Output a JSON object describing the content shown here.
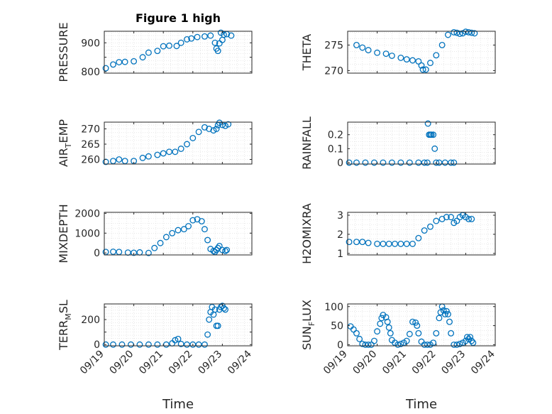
{
  "chart_data": {
    "title": "Figure 1 high",
    "time_axis": {
      "label": "Time",
      "tick_labels": [
        "09/19",
        "09/20",
        "09/21",
        "09/22",
        "09/23",
        "09/24"
      ],
      "range": [
        "09/19",
        "09/24"
      ]
    },
    "marker": {
      "shape": "open-circle",
      "color": "#0072bd"
    },
    "grid": "dotted major and minor",
    "panels": [
      {
        "type": "scatter",
        "ylabel_parts": [
          "PRESSURE"
        ],
        "ylim": [
          795,
          940
        ],
        "yticks": [
          800,
          850,
          900
        ],
        "ytick_labels": [
          "800",
          "",
          "900"
        ],
        "x": [
          0.05,
          0.3,
          0.5,
          0.7,
          1.0,
          1.3,
          1.5,
          1.8,
          2.0,
          2.2,
          2.45,
          2.6,
          2.8,
          2.95,
          3.15,
          3.4,
          3.6,
          3.75,
          3.8,
          3.85,
          3.9,
          3.95,
          4.0,
          4.05,
          4.15,
          4.3
        ],
        "y": [
          812,
          825,
          833,
          834,
          836,
          850,
          866,
          872,
          888,
          890,
          889,
          900,
          912,
          915,
          920,
          922,
          925,
          900,
          880,
          872,
          898,
          935,
          910,
          928,
          930,
          925
        ]
      },
      {
        "type": "scatter",
        "ylabel_parts": [
          "THETA"
        ],
        "ylim": [
          269.5,
          277.7
        ],
        "yticks": [
          270,
          275
        ],
        "ytick_labels": [
          "270",
          "275"
        ],
        "x": [
          0.3,
          0.5,
          0.7,
          1.0,
          1.3,
          1.5,
          1.8,
          2.0,
          2.2,
          2.4,
          2.5,
          2.55,
          2.65,
          2.8,
          3.0,
          3.2,
          3.4,
          3.6,
          3.7,
          3.8,
          3.9,
          4.0,
          4.1,
          4.2,
          4.3
        ],
        "y": [
          275,
          274.5,
          274,
          273.5,
          273.3,
          272.9,
          272.5,
          272.2,
          272,
          271.8,
          271,
          270.2,
          270.2,
          271.5,
          273,
          275,
          277,
          277.5,
          277.4,
          277.2,
          277.3,
          277.6,
          277.5,
          277.4,
          277.3
        ]
      },
      {
        "type": "scatter",
        "ylabel_parts": [
          "AIR",
          "T",
          "EMP"
        ],
        "ylim": [
          258.5,
          272.2
        ],
        "yticks": [
          260,
          265,
          270
        ],
        "ytick_labels": [
          "260",
          "265",
          "270"
        ],
        "x": [
          0.05,
          0.3,
          0.5,
          0.7,
          1.0,
          1.3,
          1.5,
          1.8,
          2.0,
          2.2,
          2.4,
          2.6,
          2.8,
          3.0,
          3.2,
          3.4,
          3.55,
          3.7,
          3.8,
          3.85,
          3.9,
          4.0,
          4.1,
          4.2
        ],
        "y": [
          259.2,
          259.5,
          260,
          259.5,
          259.5,
          260.5,
          261,
          261.5,
          262,
          262.5,
          262.5,
          263.5,
          265,
          267,
          269,
          270.5,
          270,
          269.5,
          270,
          271.2,
          272,
          271.3,
          271,
          271.5
        ]
      },
      {
        "type": "scatter",
        "ylabel_parts": [
          "RAINFALL"
        ],
        "ylim": [
          -0.01,
          0.29
        ],
        "yticks": [
          0,
          0.1,
          0.2
        ],
        "ytick_labels": [
          "0",
          "0.1",
          "0.2"
        ],
        "x": [
          0.05,
          0.3,
          0.6,
          0.9,
          1.2,
          1.5,
          1.8,
          2.1,
          2.4,
          2.6,
          2.7,
          2.72,
          2.76,
          2.8,
          2.84,
          2.9,
          2.95,
          3.0,
          3.1,
          3.3,
          3.5,
          3.6
        ],
        "y": [
          0,
          0,
          0,
          0,
          0,
          0,
          0,
          0,
          0,
          0,
          0,
          0.28,
          0.2,
          0.2,
          0.2,
          0.2,
          0.1,
          0,
          0,
          0,
          0,
          0
        ]
      },
      {
        "type": "scatter",
        "ylabel_parts": [
          "MIXDEPTH"
        ],
        "ylim": [
          -100,
          2050
        ],
        "yticks": [
          0,
          1000,
          2000
        ],
        "ytick_labels": [
          "0",
          "1000",
          "2000"
        ],
        "x": [
          0.05,
          0.3,
          0.5,
          0.8,
          1.0,
          1.2,
          1.5,
          1.7,
          1.9,
          2.1,
          2.3,
          2.5,
          2.7,
          2.85,
          3.0,
          3.15,
          3.3,
          3.4,
          3.5,
          3.6,
          3.7,
          3.75,
          3.8,
          3.85,
          3.9,
          4.0,
          4.1,
          4.15
        ],
        "y": [
          50,
          60,
          50,
          20,
          10,
          30,
          0,
          250,
          500,
          800,
          1000,
          1150,
          1200,
          1350,
          1650,
          1700,
          1600,
          1200,
          650,
          200,
          100,
          50,
          150,
          250,
          350,
          150,
          100,
          150
        ]
      },
      {
        "type": "scatter",
        "ylabel_parts": [
          "H2OMIXRA"
        ],
        "ylim": [
          0.92,
          3.15
        ],
        "yticks": [
          1,
          2,
          3
        ],
        "ytick_labels": [
          "1",
          "2",
          "3"
        ],
        "x": [
          0.05,
          0.3,
          0.5,
          0.7,
          1.0,
          1.2,
          1.4,
          1.6,
          1.8,
          2.0,
          2.2,
          2.4,
          2.6,
          2.8,
          3.0,
          3.2,
          3.35,
          3.5,
          3.6,
          3.7,
          3.8,
          3.9,
          4.0,
          4.1,
          4.2
        ],
        "y": [
          1.6,
          1.6,
          1.6,
          1.55,
          1.5,
          1.5,
          1.5,
          1.5,
          1.5,
          1.5,
          1.5,
          1.8,
          2.2,
          2.4,
          2.7,
          2.8,
          2.9,
          2.9,
          2.6,
          2.7,
          2.9,
          3.0,
          2.9,
          2.8,
          2.8
        ]
      },
      {
        "type": "scatter",
        "ylabel_parts": [
          "TERR",
          "M",
          "SL"
        ],
        "ylim": [
          -10,
          325
        ],
        "yticks": [
          0,
          100,
          200,
          300
        ],
        "ytick_labels": [
          "0",
          "",
          "200",
          ""
        ],
        "x": [
          0.05,
          0.3,
          0.6,
          0.9,
          1.2,
          1.5,
          1.8,
          2.1,
          2.3,
          2.4,
          2.5,
          2.6,
          2.8,
          3.0,
          3.2,
          3.4,
          3.5,
          3.55,
          3.6,
          3.65,
          3.7,
          3.75,
          3.8,
          3.85,
          3.9,
          3.95,
          4.0,
          4.05,
          4.1
        ],
        "y": [
          0,
          0,
          0,
          0,
          0,
          0,
          0,
          0,
          10,
          35,
          45,
          5,
          0,
          0,
          0,
          0,
          80,
          200,
          260,
          300,
          240,
          280,
          150,
          150,
          280,
          300,
          310,
          290,
          280
        ]
      },
      {
        "type": "scatter",
        "ylabel_parts": [
          "SUN",
          "F",
          "LUX"
        ],
        "ylim": [
          -3,
          107
        ],
        "yticks": [
          0,
          50,
          100
        ],
        "ytick_labels": [
          "0",
          "50",
          "100"
        ],
        "x": [
          0.1,
          0.2,
          0.3,
          0.4,
          0.5,
          0.6,
          0.7,
          0.8,
          0.9,
          1.0,
          1.1,
          1.15,
          1.2,
          1.3,
          1.35,
          1.4,
          1.45,
          1.5,
          1.6,
          1.7,
          1.8,
          1.9,
          2.0,
          2.1,
          2.2,
          2.3,
          2.35,
          2.4,
          2.5,
          2.6,
          2.7,
          2.8,
          2.9,
          3.0,
          3.1,
          3.15,
          3.2,
          3.25,
          3.3,
          3.35,
          3.4,
          3.45,
          3.5,
          3.6,
          3.7,
          3.8,
          3.9,
          4.0,
          4.05,
          4.1,
          4.15,
          4.2,
          4.25
        ],
        "y": [
          48,
          40,
          30,
          15,
          2,
          0,
          0,
          0,
          10,
          35,
          55,
          70,
          78,
          72,
          60,
          45,
          30,
          12,
          5,
          0,
          2,
          5,
          10,
          28,
          60,
          58,
          50,
          30,
          8,
          0,
          0,
          0,
          5,
          30,
          70,
          85,
          100,
          90,
          80,
          88,
          80,
          60,
          30,
          0,
          0,
          2,
          5,
          10,
          20,
          15,
          20,
          10,
          5
        ]
      }
    ]
  }
}
